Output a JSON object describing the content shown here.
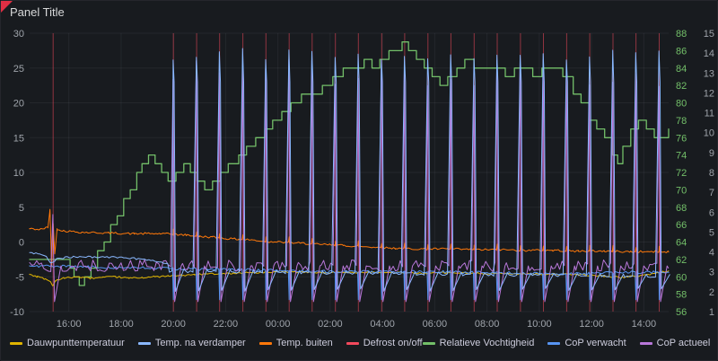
{
  "panel": {
    "bg": "#181b1f",
    "border": "#25262c",
    "title_color": "#d8d9da",
    "error_color": "#e02f44"
  },
  "legend": {
    "left": [
      {
        "label": "Dauwpunttemperatuur",
        "color": "#e0b400"
      },
      {
        "label": "Temp. na verdamper",
        "color": "#8ab8ff"
      },
      {
        "label": "Temp. buiten",
        "color": "#ff780a"
      },
      {
        "label": "Defrost on/off",
        "color": "#f2495c"
      }
    ],
    "right": [
      {
        "label": "Relatieve Vochtigheid",
        "color": "#73bf69"
      },
      {
        "label": "CoP verwacht",
        "color": "#5794f2"
      },
      {
        "label": "CoP actueel",
        "color": "#b877d9"
      }
    ]
  },
  "chart_data": {
    "type": "line",
    "title": "Panel Title",
    "xlabel": "",
    "ylabel": "",
    "legend_position": "bottom",
    "grid_color": "rgba(204,204,220,0.07)",
    "x_color": "#9fa4ab",
    "x_range_hours": [
      0,
      24.45
    ],
    "x_ticks": [
      "16:00",
      "18:00",
      "20:00",
      "22:00",
      "00:00",
      "02:00",
      "04:00",
      "06:00",
      "08:00",
      "10:00",
      "12:00",
      "14:00"
    ],
    "x_tick_hours": [
      1.5,
      3.5,
      5.5,
      7.5,
      9.5,
      11.5,
      13.5,
      15.5,
      17.5,
      19.5,
      21.5,
      23.5
    ],
    "axes": {
      "left": {
        "min": -10,
        "max": 30,
        "ticks": [
          -10,
          -5,
          0,
          5,
          10,
          15,
          20,
          25,
          30
        ],
        "color": "#9fa4ab"
      },
      "humidity": {
        "min": 56,
        "max": 88,
        "ticks": [
          56,
          58,
          60,
          62,
          64,
          66,
          68,
          70,
          72,
          74,
          76,
          78,
          80,
          82,
          84,
          86,
          88
        ],
        "color": "#73bf69"
      },
      "cop": {
        "min": 1,
        "max": 15,
        "ticks": [
          1,
          2,
          3,
          4,
          5,
          6,
          7,
          8,
          9,
          10,
          11,
          12,
          13,
          14,
          15
        ],
        "color": "#9fa4ab"
      }
    },
    "defrost_events": [
      5.5,
      6.39,
      7.27,
      8.16,
      9.04,
      9.93,
      10.81,
      11.7,
      12.58,
      13.47,
      14.35,
      15.24,
      16.12,
      17.01,
      17.89,
      18.78,
      19.66,
      20.55,
      21.43,
      22.32,
      23.2,
      24.09
    ],
    "early_events": [
      0.9
    ],
    "series": [
      {
        "name": "Defrost on/off",
        "axis": "left",
        "type": "event-vline",
        "color": "#f2495c"
      },
      {
        "name": "Relatieve Vochtigheid",
        "axis": "humidity",
        "type": "step",
        "color": "#73bf69",
        "points": [
          [
            0,
            62
          ],
          [
            1.4,
            62
          ],
          [
            1.55,
            61
          ],
          [
            1.7,
            60
          ],
          [
            1.9,
            59
          ],
          [
            2.1,
            60
          ],
          [
            2.35,
            61
          ],
          [
            2.6,
            63
          ],
          [
            2.85,
            64
          ],
          [
            3.1,
            66
          ],
          [
            3.35,
            67
          ],
          [
            3.6,
            69
          ],
          [
            3.85,
            70
          ],
          [
            4.1,
            72
          ],
          [
            4.3,
            73
          ],
          [
            4.55,
            74
          ],
          [
            4.8,
            73
          ],
          [
            5.05,
            72
          ],
          [
            5.3,
            71
          ],
          [
            5.6,
            72
          ],
          [
            5.9,
            73
          ],
          [
            6.15,
            72
          ],
          [
            6.4,
            71
          ],
          [
            6.7,
            70
          ],
          [
            7.0,
            71
          ],
          [
            7.3,
            72
          ],
          [
            7.6,
            73
          ],
          [
            8.0,
            74
          ],
          [
            8.3,
            75
          ],
          [
            8.65,
            76
          ],
          [
            9.0,
            77
          ],
          [
            9.3,
            78
          ],
          [
            9.65,
            79
          ],
          [
            10.0,
            80
          ],
          [
            10.4,
            81
          ],
          [
            10.8,
            81
          ],
          [
            11.2,
            82
          ],
          [
            11.6,
            83
          ],
          [
            12.0,
            84
          ],
          [
            12.4,
            84
          ],
          [
            12.8,
            85
          ],
          [
            13.1,
            84
          ],
          [
            13.4,
            85
          ],
          [
            13.75,
            86
          ],
          [
            14.05,
            86
          ],
          [
            14.25,
            87
          ],
          [
            14.5,
            86
          ],
          [
            14.8,
            85
          ],
          [
            15.1,
            84
          ],
          [
            15.4,
            83
          ],
          [
            15.7,
            82
          ],
          [
            16.0,
            83
          ],
          [
            16.35,
            84
          ],
          [
            16.65,
            85
          ],
          [
            17.0,
            84
          ],
          [
            17.4,
            84
          ],
          [
            17.8,
            84
          ],
          [
            18.2,
            83
          ],
          [
            18.55,
            84
          ],
          [
            18.9,
            84
          ],
          [
            19.25,
            83
          ],
          [
            19.6,
            84
          ],
          [
            20.0,
            84
          ],
          [
            20.4,
            83
          ],
          [
            20.8,
            81
          ],
          [
            21.1,
            80
          ],
          [
            21.4,
            78
          ],
          [
            21.7,
            77
          ],
          [
            22.0,
            76
          ],
          [
            22.3,
            74
          ],
          [
            22.5,
            73
          ],
          [
            22.7,
            75
          ],
          [
            23.0,
            77
          ],
          [
            23.3,
            78
          ],
          [
            23.6,
            77
          ],
          [
            23.9,
            76
          ],
          [
            24.2,
            76
          ],
          [
            24.45,
            77
          ]
        ]
      },
      {
        "name": "Temp. buiten",
        "axis": "left",
        "type": "noisy-line",
        "color": "#ff780a",
        "noise": 0.15,
        "event_bump": 0.7,
        "points": [
          [
            0,
            1.9
          ],
          [
            0.4,
            1.8
          ],
          [
            0.7,
            2.1
          ],
          [
            0.78,
            4.7
          ],
          [
            0.84,
            -3.6
          ],
          [
            0.9,
            2.8
          ],
          [
            0.96,
            -1.8
          ],
          [
            1.05,
            1.9
          ],
          [
            1.3,
            1.6
          ],
          [
            2,
            1.4
          ],
          [
            3,
            1.3
          ],
          [
            4,
            1.2
          ],
          [
            5,
            1.2
          ],
          [
            5.5,
            1.1
          ],
          [
            6,
            1.0
          ],
          [
            6.5,
            0.8
          ],
          [
            7,
            0.7
          ],
          [
            7.5,
            0.5
          ],
          [
            8,
            0.4
          ],
          [
            8.5,
            0.3
          ],
          [
            9,
            0.1
          ],
          [
            9.5,
            0.0
          ],
          [
            10,
            -0.1
          ],
          [
            10.5,
            -0.2
          ],
          [
            11,
            -0.3
          ],
          [
            11.5,
            -0.4
          ],
          [
            12,
            -0.5
          ],
          [
            12.5,
            -0.6
          ],
          [
            13,
            -0.7
          ],
          [
            13.5,
            -0.8
          ],
          [
            14,
            -0.9
          ],
          [
            15,
            -1.0
          ],
          [
            16,
            -1.0
          ],
          [
            17,
            -1.1
          ],
          [
            18,
            -1.1
          ],
          [
            19,
            -1.2
          ],
          [
            20,
            -1.2
          ],
          [
            21,
            -1.3
          ],
          [
            22,
            -1.3
          ],
          [
            23,
            -1.4
          ],
          [
            24,
            -1.4
          ],
          [
            24.45,
            -1.4
          ]
        ]
      },
      {
        "name": "Dauwpunttemperatuur",
        "axis": "left",
        "type": "noisy-line",
        "color": "#e0b400",
        "noise": 0.12,
        "points": [
          [
            0,
            -4.6
          ],
          [
            0.3,
            -5.0
          ],
          [
            0.6,
            -5.3
          ],
          [
            0.8,
            -5.7
          ],
          [
            0.88,
            -6.3
          ],
          [
            1.0,
            -5.5
          ],
          [
            1.3,
            -5.2
          ],
          [
            1.8,
            -5.0
          ],
          [
            2.3,
            -5.2
          ],
          [
            2.8,
            -5.1
          ],
          [
            3.3,
            -5.0
          ],
          [
            3.8,
            -5.2
          ],
          [
            4.3,
            -5.1
          ],
          [
            4.8,
            -5.0
          ],
          [
            5.3,
            -4.9
          ],
          [
            5.8,
            -4.8
          ],
          [
            6.3,
            -4.7
          ],
          [
            6.8,
            -4.6
          ],
          [
            7.3,
            -4.5
          ],
          [
            7.8,
            -4.5
          ],
          [
            8.3,
            -4.4
          ],
          [
            9,
            -4.4
          ],
          [
            10,
            -4.3
          ],
          [
            11,
            -4.4
          ],
          [
            12,
            -4.4
          ],
          [
            13,
            -4.3
          ],
          [
            14,
            -4.4
          ],
          [
            15,
            -4.5
          ],
          [
            16,
            -4.4
          ],
          [
            17,
            -4.5
          ],
          [
            18,
            -4.5
          ],
          [
            19,
            -4.6
          ],
          [
            20,
            -4.6
          ],
          [
            21,
            -4.7
          ],
          [
            22,
            -4.9
          ],
          [
            22.6,
            -5.1
          ],
          [
            23.2,
            -4.9
          ],
          [
            23.8,
            -4.6
          ],
          [
            24.2,
            -4.3
          ],
          [
            24.45,
            -4.2
          ]
        ]
      },
      {
        "name": "CoP verwacht",
        "axis": "cop",
        "type": "noisy-line",
        "color": "#5794f2",
        "noise": 0.07,
        "event_dip": 1.6,
        "points": [
          [
            0,
            3.3
          ],
          [
            4,
            3.2
          ],
          [
            8,
            3.1
          ],
          [
            12,
            3.0
          ],
          [
            16,
            3.0
          ],
          [
            20,
            2.9
          ],
          [
            24.45,
            3.0
          ]
        ]
      },
      {
        "name": "CoP actueel",
        "axis": "cop",
        "type": "cop-spike",
        "color": "#b877d9",
        "base": 3.3,
        "noise": 0.3,
        "spike_top": 13.0,
        "dip": 1.5,
        "early_top": 5.5
      },
      {
        "name": "Temp. na verdamper",
        "axis": "left",
        "type": "defrost-temp",
        "color": "#8ab8ff",
        "base_start": -4.2,
        "base_end": -5.0,
        "spike_top": 27.0,
        "dip": -6.9,
        "pre_points": [
          [
            0,
            -1.5
          ],
          [
            0.3,
            -1.7
          ],
          [
            0.6,
            -2.0
          ],
          [
            0.85,
            -3.1
          ],
          [
            1.0,
            -2.5
          ],
          [
            1.4,
            -2.2
          ],
          [
            2.0,
            -2.1
          ],
          [
            2.6,
            -2.2
          ],
          [
            3.2,
            -2.2
          ],
          [
            3.8,
            -2.3
          ],
          [
            4.4,
            -2.5
          ],
          [
            5.0,
            -2.8
          ],
          [
            5.4,
            -3.3
          ]
        ]
      }
    ]
  }
}
